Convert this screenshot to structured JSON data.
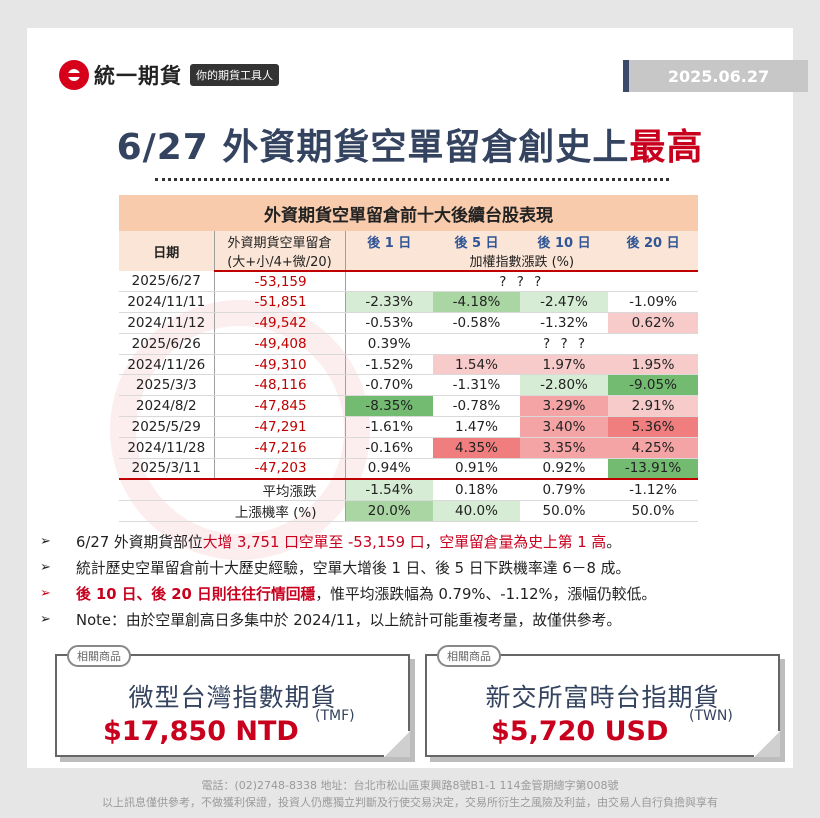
{
  "brand": {
    "name": "統一期貨",
    "slogan": "你的期貨工具人"
  },
  "date": "2025.06.27",
  "headline": {
    "main": "6/27 外資期貨空單留倉創史上",
    "highlight": "最高"
  },
  "table": {
    "title": "外資期貨空單留倉前十大後續台股表現",
    "h_date": "日期",
    "h_pos_line1": "外資期貨空單留倉",
    "h_pos_line2": "(大+小/4+微/20)",
    "h_after": [
      "後 1 日",
      "後 5 日",
      "後 10 日",
      "後 20 日"
    ],
    "h_sub": "加權指數漲跌 (%)",
    "rows": [
      {
        "date": "2025/6/27",
        "pos": "-53,159",
        "merged": "? ? ?"
      },
      {
        "date": "2024/11/11",
        "pos": "-51,851",
        "d1": "-2.33%",
        "d5": "-4.18%",
        "d10": "-2.47%",
        "d20": "-1.09%"
      },
      {
        "date": "2024/11/12",
        "pos": "-49,542",
        "d1": "-0.53%",
        "d5": "-0.58%",
        "d10": "-1.32%",
        "d20": "0.62%"
      },
      {
        "date": "2025/6/26",
        "pos": "-49,408",
        "d1": "0.39%",
        "merged": "? ? ?"
      },
      {
        "date": "2024/11/26",
        "pos": "-49,310",
        "d1": "-1.52%",
        "d5": "1.54%",
        "d10": "1.97%",
        "d20": "1.95%"
      },
      {
        "date": "2025/3/3",
        "pos": "-48,116",
        "d1": "-0.70%",
        "d5": "-1.31%",
        "d10": "-2.80%",
        "d20": "-9.05%"
      },
      {
        "date": "2024/8/2",
        "pos": "-47,845",
        "d1": "-8.35%",
        "d5": "-0.78%",
        "d10": "3.29%",
        "d20": "2.91%"
      },
      {
        "date": "2025/5/29",
        "pos": "-47,291",
        "d1": "-1.61%",
        "d5": "1.47%",
        "d10": "3.40%",
        "d20": "5.36%"
      },
      {
        "date": "2024/11/28",
        "pos": "-47,216",
        "d1": "-0.16%",
        "d5": "4.35%",
        "d10": "3.35%",
        "d20": "4.25%"
      },
      {
        "date": "2025/3/11",
        "pos": "-47,203",
        "d1": "0.94%",
        "d5": "0.91%",
        "d10": "0.92%",
        "d20": "-13.91%"
      }
    ],
    "avg": {
      "label": "平均漲跌",
      "d1": "-1.54%",
      "d5": "0.18%",
      "d10": "0.79%",
      "d20": "-1.12%"
    },
    "up": {
      "label": "上漲機率 (%)",
      "d1": "20.0%",
      "d5": "40.0%",
      "d10": "50.0%",
      "d20": "50.0%"
    }
  },
  "bullets": {
    "b1": {
      "a": "6/27 外資期貨部位",
      "b": "大增 3,751 口空單至 -53,159 口",
      "c": "，",
      "d": "空單留倉量為史上第 1 高",
      "e": "。"
    },
    "b2": "統計歷史空單留倉前十大歷史經驗，空單大增後 1 日、後 5 日下跌機率達 6－8 成。",
    "b3": {
      "a": "後 10 日、後 20 日則往往行情回穩",
      "b": "，惟平均漲跌幅為 0.79%、-1.12%，漲幅仍較低。"
    },
    "b4": "Note：由於空單創高日多集中於 2024/11，以上統計可能重複考量，故僅供參考。"
  },
  "products": [
    {
      "tag": "相關商品",
      "name": "微型台灣指數期貨",
      "price": "$17,850 NTD",
      "code": "(TMF)"
    },
    {
      "tag": "相關商品",
      "name": "新交所富時台指期貨",
      "price": "$5,720 USD",
      "code": "(TWN)"
    }
  ],
  "footer": {
    "line1": "電話：(02)2748-8338  地址：台北市松山區東興路8號B1-1  114金管期總字第008號",
    "line2": "以上訊息僅供參考，不做獲利保證，投資人仍應獨立判斷及行使交易決定，交易所衍生之風險及利益，由交易人自行負擔與享有"
  },
  "colors": {
    "accent_red": "#c8001e",
    "navy": "#34435f",
    "header_peach": "#f8cbad"
  }
}
